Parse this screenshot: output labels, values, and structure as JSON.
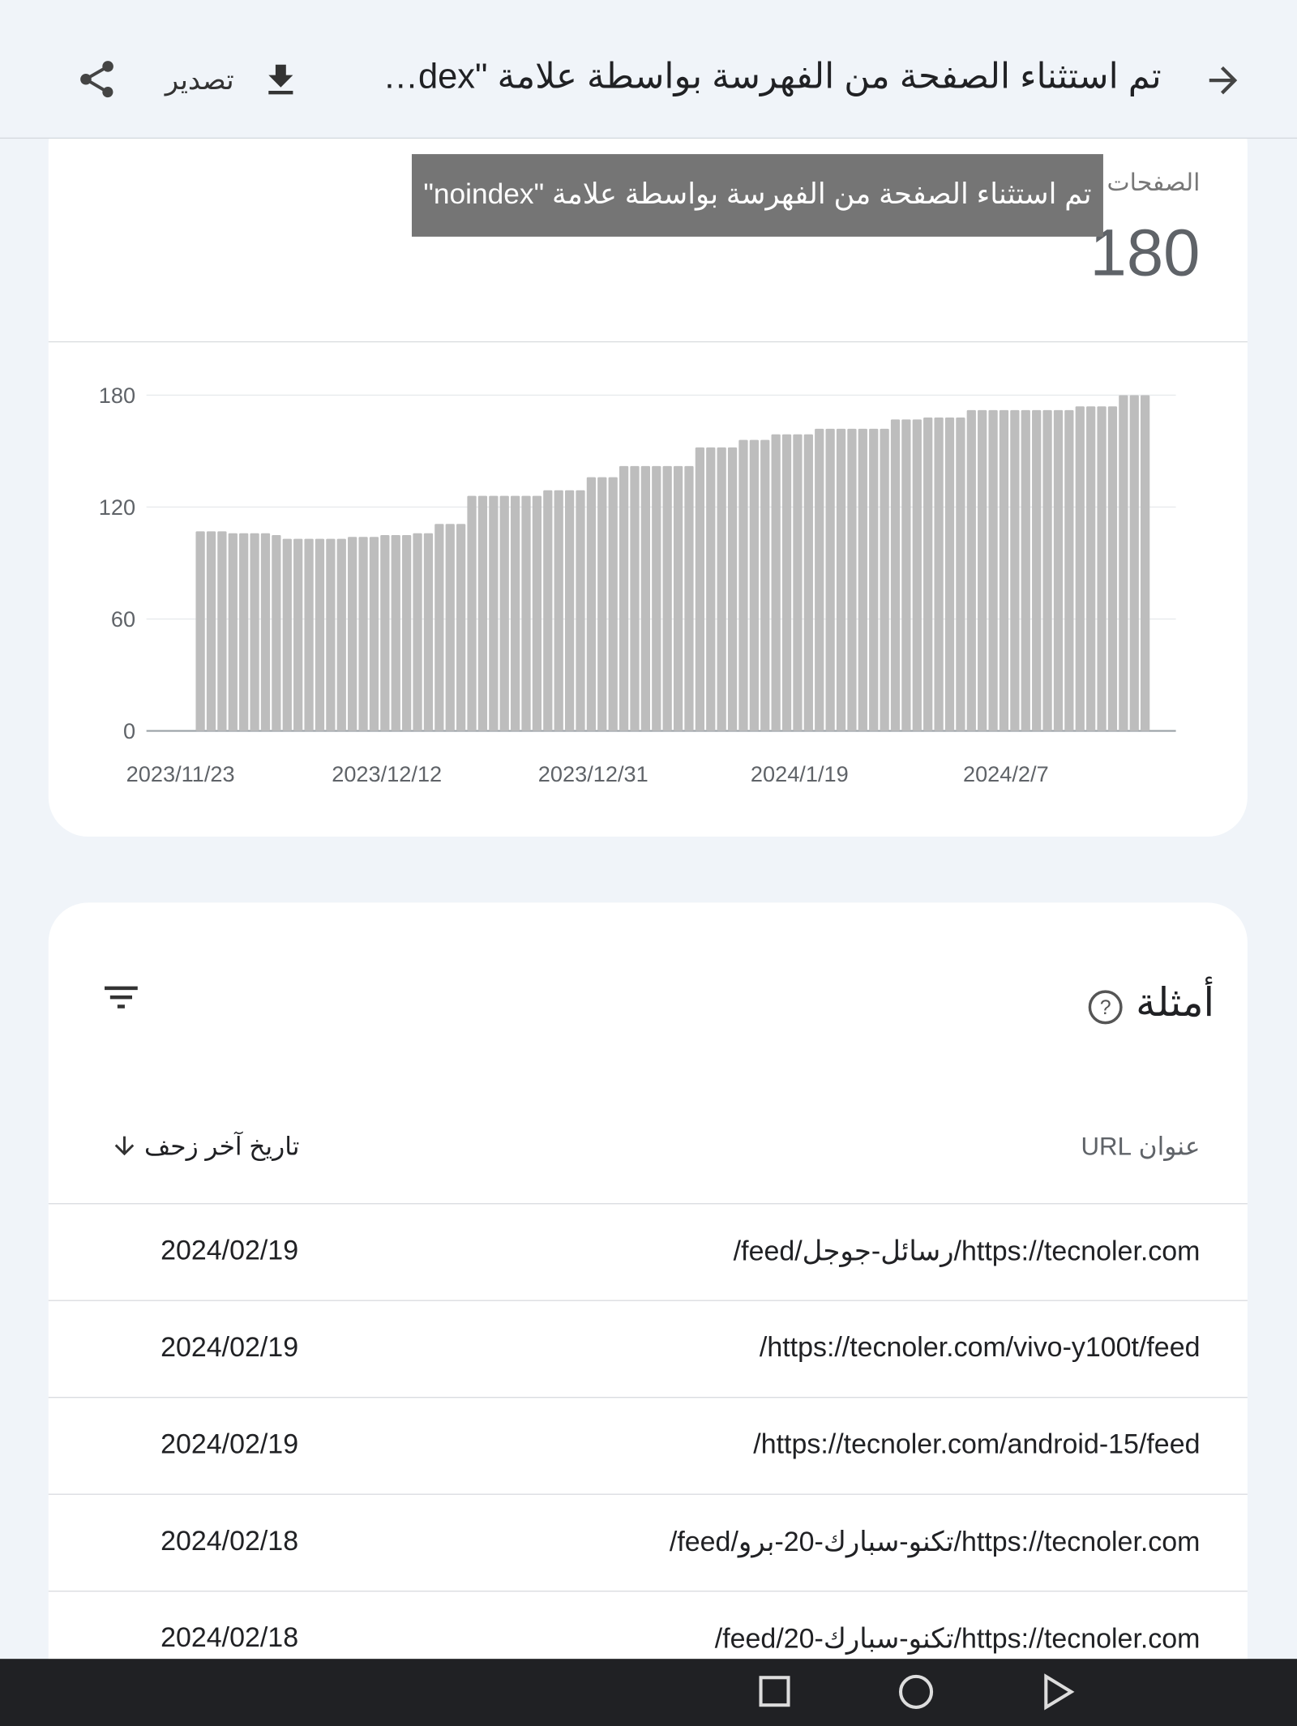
{
  "header": {
    "title": "تم استثناء الصفحة من الفهرسة بواسطة علامة \"noindex\"",
    "export": "تصدير"
  },
  "summary": {
    "label": "الصفحات المتأثرة",
    "value": 180,
    "tooltip": "تم استثناء الصفحة من الفهرسة بواسطة علامة \"noindex\""
  },
  "chart_data": {
    "type": "bar",
    "categories": [
      "2023/11/23",
      null,
      null,
      null,
      null,
      null,
      null,
      null,
      null,
      null,
      null,
      null,
      null,
      null,
      null,
      null,
      null,
      null,
      null,
      "2023/12/12",
      null,
      null,
      null,
      null,
      null,
      null,
      null,
      null,
      null,
      null,
      null,
      null,
      null,
      null,
      null,
      null,
      null,
      null,
      "2023/12/31",
      null,
      null,
      null,
      null,
      null,
      null,
      null,
      null,
      null,
      null,
      null,
      null,
      null,
      null,
      null,
      null,
      null,
      null,
      "2024/1/19",
      null,
      null,
      null,
      null,
      null,
      null,
      null,
      null,
      null,
      null,
      null,
      null,
      null,
      null,
      null,
      null,
      null,
      null,
      "2024/2/7",
      null,
      null,
      null,
      null,
      null,
      null,
      null,
      null,
      null,
      null,
      null
    ],
    "values": [
      107,
      107,
      107,
      106,
      106,
      106,
      106,
      105,
      103,
      103,
      103,
      103,
      103,
      103,
      104,
      104,
      104,
      105,
      105,
      105,
      106,
      106,
      111,
      111,
      111,
      126,
      126,
      126,
      126,
      126,
      126,
      126,
      129,
      129,
      129,
      129,
      136,
      136,
      136,
      142,
      142,
      142,
      142,
      142,
      142,
      142,
      152,
      152,
      152,
      152,
      156,
      156,
      156,
      159,
      159,
      159,
      159,
      162,
      162,
      162,
      162,
      162,
      162,
      162,
      167,
      167,
      167,
      168,
      168,
      168,
      168,
      172,
      172,
      172,
      172,
      172,
      172,
      172,
      172,
      172,
      172,
      174,
      174,
      174,
      174,
      180,
      180,
      180
    ],
    "color": "#bdbdbd",
    "ylim": [
      0,
      180
    ],
    "yticks": [
      0,
      60,
      120,
      180
    ],
    "grid": true
  },
  "examples": {
    "title": "أمثلة",
    "columns": [
      "عنوان URL",
      "تاريخ آخر زحف"
    ],
    "rows": [
      [
        "https://tecnoler.com/رسائل-جوجل/feed/",
        "2024/02/19"
      ],
      [
        "https://tecnoler.com/vivo-y100t/feed/",
        "2024/02/19"
      ],
      [
        "https://tecnoler.com/android-15/feed/",
        "2024/02/19"
      ],
      [
        "https://tecnoler.com/تكنو-سبارك-20-برو/feed/",
        "2024/02/18"
      ],
      [
        "https://tecnoler.com/تكنو-سبارك-20/feed/",
        "2024/02/18"
      ]
    ]
  }
}
